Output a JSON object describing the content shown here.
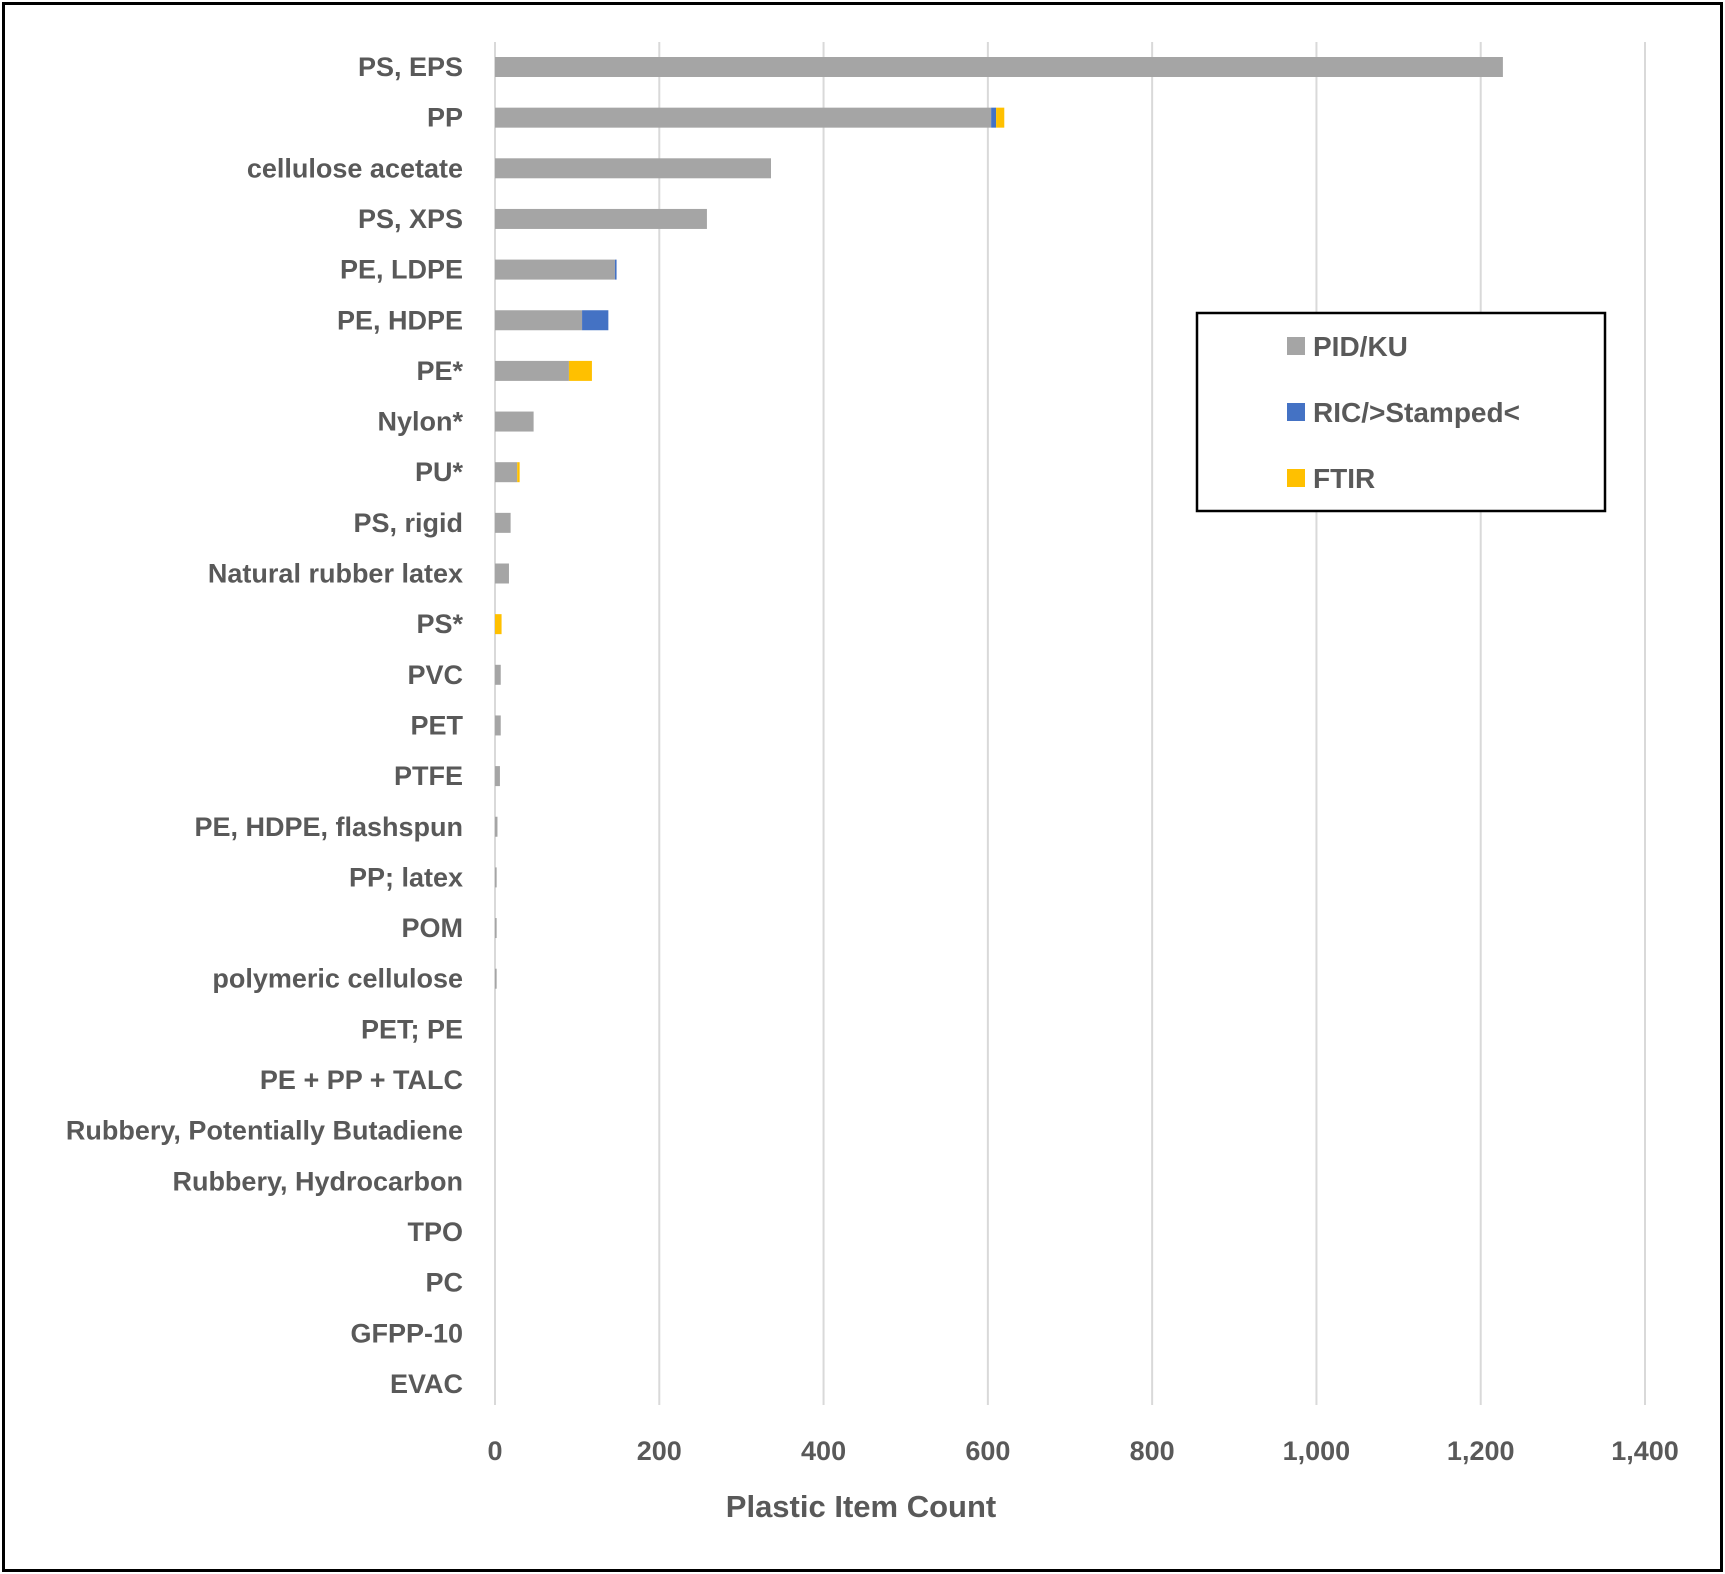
{
  "chart_data": {
    "type": "bar",
    "orientation": "horizontal",
    "stacked": true,
    "title": "",
    "xlabel": "Plastic Item Count",
    "ylabel": "",
    "xlim": [
      0,
      1400
    ],
    "xticks": [
      0,
      200,
      400,
      600,
      800,
      1000,
      1200,
      1400
    ],
    "xtick_labels": [
      "0",
      "200",
      "400",
      "600",
      "800",
      "1,000",
      "1,200",
      "1,400"
    ],
    "grid": "vertical",
    "legend_position": "top-right",
    "categories": [
      "PS, EPS",
      "PP",
      "cellulose acetate",
      "PS, XPS",
      "PE, LDPE",
      "PE, HDPE",
      "PE*",
      "Nylon*",
      "PU*",
      "PS, rigid",
      "Natural rubber latex",
      "PS*",
      "PVC",
      "PET",
      "PTFE",
      "PE, HDPE, flashspun",
      "PP; latex",
      "POM",
      "polymeric cellulose",
      "PET; PE",
      "PE + PP + TALC",
      "Rubbery, Potentially Butadiene",
      "Rubbery, Hydrocarbon",
      "TPO",
      "PC",
      "GFPP-10",
      "EVAC"
    ],
    "series": [
      {
        "name": "PID/KU",
        "color": "#a5a5a5",
        "values": [
          1227,
          604,
          336,
          258,
          146,
          106,
          90,
          47,
          27,
          19,
          17,
          0,
          7,
          7,
          6,
          3,
          2,
          2,
          2,
          0,
          0,
          0,
          0,
          0,
          0,
          0,
          0
        ]
      },
      {
        "name": "RIC/>Stamped<",
        "color": "#4472c4",
        "values": [
          0,
          6,
          0,
          0,
          2,
          32,
          0,
          0,
          0,
          0,
          0,
          0,
          0,
          0,
          0,
          0,
          0,
          0,
          0,
          0,
          0,
          0,
          0,
          0,
          0,
          0,
          0
        ]
      },
      {
        "name": "FTIR",
        "color": "#ffc000",
        "values": [
          0,
          10,
          0,
          0,
          0,
          0,
          28,
          0,
          3,
          0,
          0,
          8,
          0,
          0,
          0,
          0,
          0,
          0,
          0,
          0,
          0,
          0,
          0,
          0,
          0,
          0,
          0
        ]
      }
    ]
  }
}
